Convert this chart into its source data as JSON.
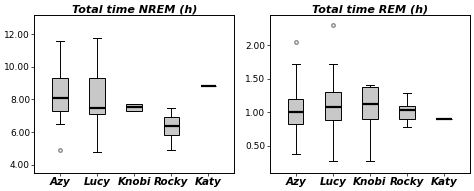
{
  "nrem": {
    "title": "Total time NREM (h)",
    "categories": [
      "Azy",
      "Lucy",
      "Knobi",
      "Rocky",
      "Katy"
    ],
    "ylim": [
      3.5,
      13.2
    ],
    "yticks": [
      4.0,
      6.0,
      8.0,
      10.0,
      12.0
    ],
    "yticklabels": [
      "4.00",
      "6.00",
      "8.00",
      "10.00",
      "12.00"
    ],
    "boxes": [
      {
        "q1": 7.3,
        "median": 8.1,
        "q3": 9.3,
        "whislo": 6.5,
        "whishi": 11.6,
        "fliers": [
          4.9
        ]
      },
      {
        "q1": 7.1,
        "median": 7.5,
        "q3": 9.3,
        "whislo": 4.8,
        "whishi": 11.8,
        "fliers": []
      },
      {
        "q1": 7.3,
        "median": 7.55,
        "q3": 7.75,
        "whislo": 7.3,
        "whishi": 7.75,
        "fliers": []
      },
      {
        "q1": 5.8,
        "median": 6.4,
        "q3": 6.9,
        "whislo": 4.9,
        "whishi": 7.5,
        "fliers": []
      },
      {
        "q1": 8.8,
        "median": 8.8,
        "q3": 8.8,
        "whislo": 8.8,
        "whishi": 8.8,
        "fliers": []
      }
    ]
  },
  "rem": {
    "title": "Total time REM (h)",
    "categories": [
      "Azy",
      "Lucy",
      "Knobi",
      "Rocky",
      "Katy"
    ],
    "ylim": [
      0.1,
      2.45
    ],
    "yticks": [
      0.5,
      1.0,
      1.5,
      2.0
    ],
    "yticklabels": [
      "0.50",
      "1.00",
      "1.50",
      "2.00"
    ],
    "boxes": [
      {
        "q1": 0.82,
        "median": 1.0,
        "q3": 1.2,
        "whislo": 0.38,
        "whishi": 1.72,
        "fliers": [
          2.05
        ]
      },
      {
        "q1": 0.88,
        "median": 1.08,
        "q3": 1.3,
        "whislo": 0.28,
        "whishi": 1.72,
        "fliers": [
          2.3
        ]
      },
      {
        "q1": 0.9,
        "median": 1.12,
        "q3": 1.38,
        "whislo": 0.28,
        "whishi": 1.4,
        "fliers": []
      },
      {
        "q1": 0.9,
        "median": 1.04,
        "q3": 1.1,
        "whislo": 0.78,
        "whishi": 1.28,
        "fliers": []
      },
      {
        "q1": 0.9,
        "median": 0.9,
        "q3": 0.9,
        "whislo": 0.9,
        "whishi": 0.9,
        "fliers": []
      }
    ]
  },
  "box_color": "#c8c8c8",
  "median_color": "#000000",
  "flier_color": "#888888",
  "title_fontsize": 8,
  "tick_fontsize": 6.5,
  "label_fontsize": 7.5
}
